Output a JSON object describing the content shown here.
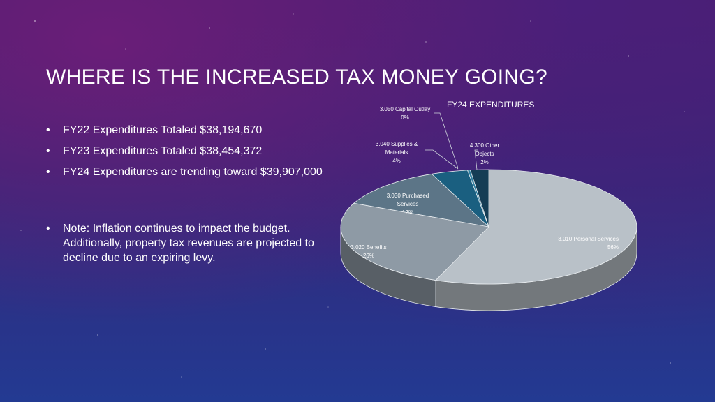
{
  "slide": {
    "title": "WHERE IS THE INCREASED TAX MONEY GOING?",
    "bullets": [
      "FY22 Expenditures Totaled $38,194,670",
      "FY23 Expenditures Totaled $38,454,372",
      "FY24 Expenditures are trending toward $39,907,000"
    ],
    "note": "Note: Inflation continues to impact the budget. Additionally, property tax revenues are projected to decline due to an expiring levy."
  },
  "chart_data": {
    "type": "pie",
    "title": "FY24 EXPENDITURES",
    "slices": [
      {
        "label": "3.010 Personal Services",
        "percent_label": "56%",
        "value": 56,
        "color": "#b9c1c8"
      },
      {
        "label": "3.020 Benefits",
        "percent_label": "26%",
        "value": 26,
        "color": "#8e9aa5"
      },
      {
        "label": "3.030 Purchased Services",
        "percent_label": "12%",
        "value": 12,
        "color": "#5c7587"
      },
      {
        "label": "3.040 Supplies & Materials",
        "percent_label": "4%",
        "value": 4,
        "color": "#1a5f80"
      },
      {
        "label": "3.050 Capital Outlay",
        "percent_label": "0%",
        "value": 0.3,
        "color": "#2f7fa0"
      },
      {
        "label": "4.300 Other Objects",
        "percent_label": "2%",
        "value": 2,
        "color": "#143d55"
      }
    ]
  }
}
